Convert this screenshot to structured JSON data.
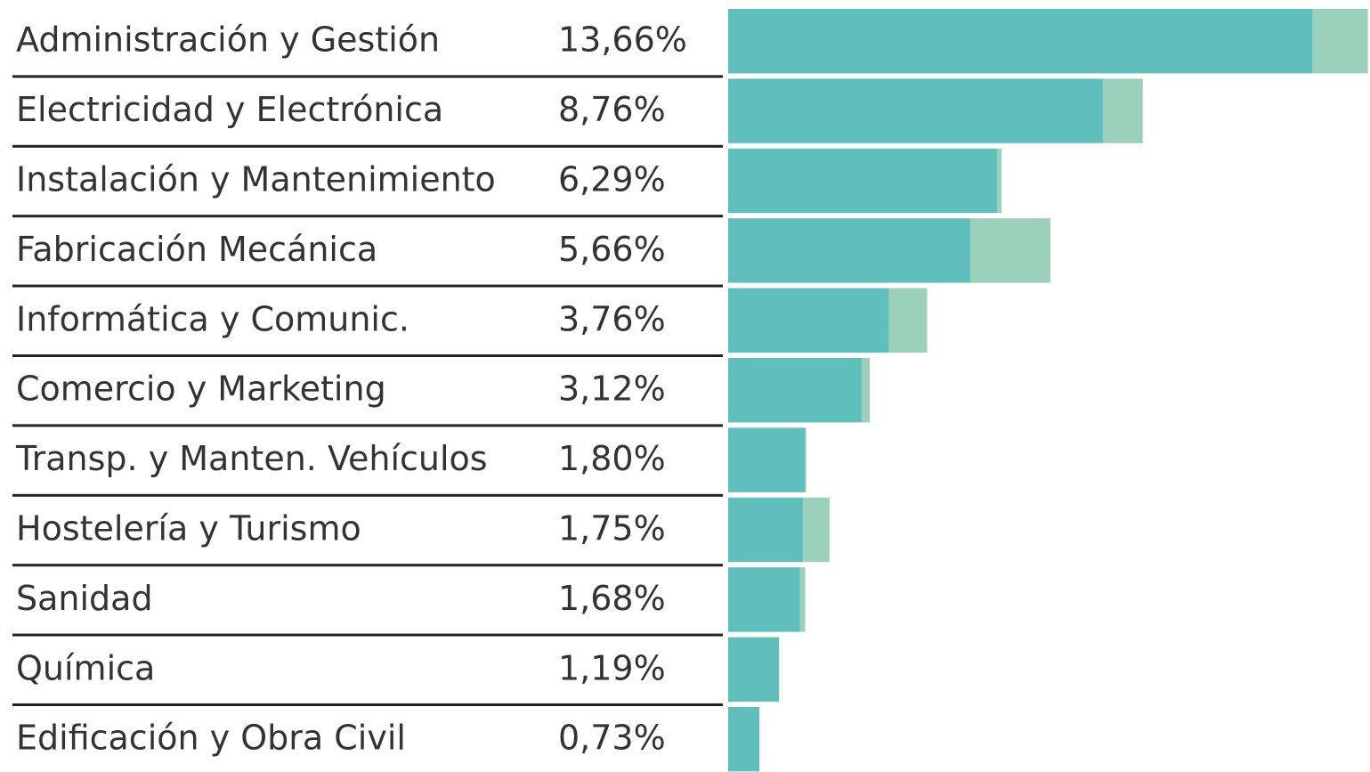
{
  "chart_data": {
    "type": "bar",
    "orientation": "horizontal",
    "stacked": true,
    "categories": [
      "Administración y Gestión",
      "Electricidad y Electrónica",
      "Instalación y Mantenimiento",
      "Fabricación Mecánica",
      "Informática y Comunic.",
      "Comercio y Marketing",
      "Transp. y Manten. Vehículos",
      "Hostelería y Turismo",
      "Sanidad",
      "Química",
      "Edificación y Obra Civil"
    ],
    "series": [
      {
        "color": "#5fbfbd",
        "values": [
          13.66,
          8.76,
          6.29,
          5.66,
          3.76,
          3.12,
          1.8,
          1.75,
          1.68,
          1.19,
          0.73
        ],
        "value_labels": [
          "13,66%",
          "8,76%",
          "6,29%",
          "5,66%",
          "3,76%",
          "3,12%",
          "1,80%",
          "1,75%",
          "1,68%",
          "1,19%",
          "0,73%"
        ]
      },
      {
        "color": "#9bd0bb",
        "values": [
          1.29,
          0.93,
          0.1,
          1.87,
          0.89,
          0.19,
          0.02,
          0.62,
          0.12,
          0.0,
          0.0
        ]
      }
    ],
    "xlim": [
      0,
      15
    ]
  }
}
